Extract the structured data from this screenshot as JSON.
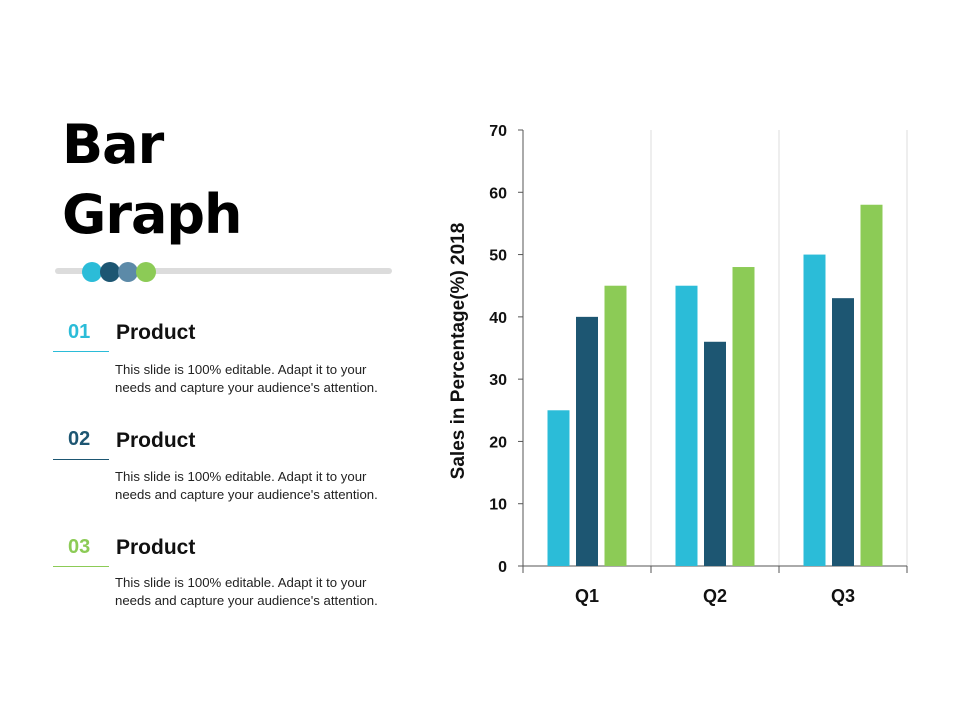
{
  "slide": {
    "title_line1": "Bar",
    "title_line2": "Graph",
    "dot_colors": [
      "#2bbcd8",
      "#1d5672",
      "#5c8aa8",
      "#8ccb56"
    ]
  },
  "items": [
    {
      "number": "01",
      "heading": "Product",
      "line1": "This slide is 100% editable. Adapt it to your",
      "line2": "needs and capture your audience's attention.",
      "color": "#2bbcd8"
    },
    {
      "number": "02",
      "heading": "Product",
      "line1": "This slide is 100% editable. Adapt it to your",
      "line2": "needs and capture your audience's attention.",
      "color": "#1d5672"
    },
    {
      "number": "03",
      "heading": "Product",
      "line1": "This slide is 100% editable. Adapt it to your",
      "line2": "needs and capture your audience's attention.",
      "color": "#8ccb56"
    }
  ],
  "chart_data": {
    "type": "bar",
    "categories": [
      "Q1",
      "Q2",
      "Q3"
    ],
    "series": [
      {
        "values": [
          25,
          45,
          50
        ],
        "color": "#2bbcd8"
      },
      {
        "values": [
          40,
          36,
          43
        ],
        "color": "#1d5672"
      },
      {
        "values": [
          45,
          48,
          58
        ],
        "color": "#8ccb56"
      }
    ],
    "ylabel": "Sales in Percentage(%) 2018",
    "xlabel": "",
    "ylim": [
      0,
      70
    ],
    "yticks": [
      0,
      10,
      20,
      30,
      40,
      50,
      60,
      70
    ],
    "grid": "vertical-category-separators",
    "legend": "none"
  }
}
